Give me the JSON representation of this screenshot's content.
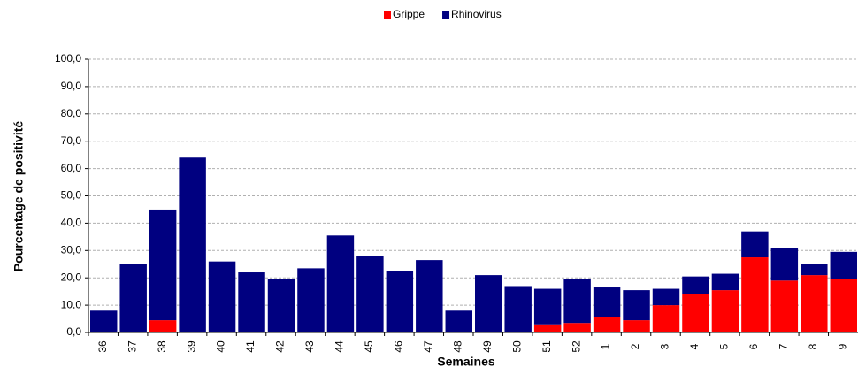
{
  "chart_data": {
    "type": "stacked_bar",
    "x_label": "Semaines",
    "y_label": "Pourcentage de positivité",
    "categories": [
      "36",
      "37",
      "38",
      "39",
      "40",
      "41",
      "42",
      "43",
      "44",
      "45",
      "46",
      "47",
      "48",
      "49",
      "50",
      "51",
      "52",
      "1",
      "2",
      "3",
      "4",
      "5",
      "6",
      "7",
      "8",
      "9"
    ],
    "series": [
      {
        "name": "Grippe",
        "color": "#ff0000",
        "values": [
          0,
          0,
          4.5,
          0,
          0,
          0,
          0,
          0,
          0,
          0,
          0,
          0,
          0,
          0,
          0,
          3,
          3.5,
          5.5,
          4.5,
          10,
          14,
          15.5,
          27.5,
          19,
          21,
          19.5
        ]
      },
      {
        "name": "Rhinovirus",
        "color": "#000080",
        "values": [
          8,
          25,
          40.5,
          64,
          26,
          22,
          19.5,
          23.5,
          35.5,
          28,
          22.5,
          26.5,
          8,
          21,
          17,
          13,
          16,
          11,
          11,
          6,
          6.5,
          6,
          9.5,
          12,
          4,
          10
        ]
      }
    ],
    "ylim": [
      0,
      100
    ],
    "yticks": [
      {
        "value": 0,
        "label": "0,0"
      },
      {
        "value": 10,
        "label": "10,0"
      },
      {
        "value": 20,
        "label": "20,0"
      },
      {
        "value": 30,
        "label": "30,0"
      },
      {
        "value": 40,
        "label": "40,0"
      },
      {
        "value": 50,
        "label": "50,0"
      },
      {
        "value": 60,
        "label": "60,0"
      },
      {
        "value": 70,
        "label": "70,0"
      },
      {
        "value": 80,
        "label": "80,0"
      },
      {
        "value": 90,
        "label": "90,0"
      },
      {
        "value": 100,
        "label": "100,0"
      }
    ],
    "grid": true,
    "legend": "top"
  }
}
